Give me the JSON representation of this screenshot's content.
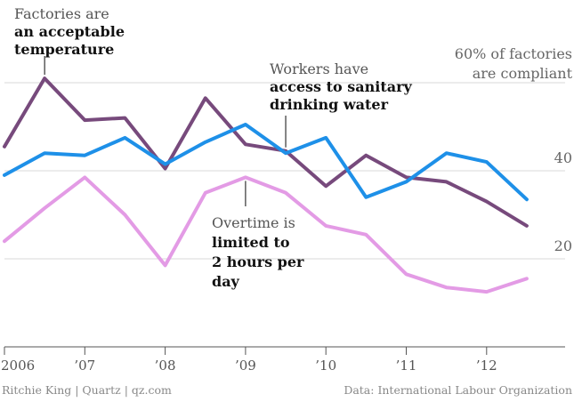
{
  "chart_data": {
    "type": "line",
    "title": "",
    "xlabel": "",
    "ylabel": "",
    "x": [
      2006.0,
      2006.5,
      2007.0,
      2007.5,
      2008.0,
      2008.5,
      2009.0,
      2009.5,
      2010.0,
      2010.5,
      2011.0,
      2011.5,
      2012.0,
      2012.5
    ],
    "xlim": [
      2006,
      2012.9
    ],
    "ylim": [
      0,
      60
    ],
    "yticks": [
      20,
      40
    ],
    "ytick_labels": [
      "20",
      "40"
    ],
    "xticks": [
      2006,
      2007,
      2008,
      2009,
      2010,
      2011,
      2012
    ],
    "xtick_labels": [
      "2006",
      "’07",
      "’08",
      "’09",
      "’10",
      "’11",
      "’12"
    ],
    "top_label_lines": [
      "60% of factories",
      "are compliant"
    ],
    "series": [
      {
        "name": "Factories are an acceptable temperature",
        "color": "#774a7c",
        "values": [
          45.5,
          61.0,
          51.5,
          52.0,
          40.5,
          56.5,
          46.0,
          44.5,
          36.5,
          43.5,
          38.5,
          37.5,
          33.0,
          27.5
        ]
      },
      {
        "name": "Workers have access to sanitary drinking water",
        "color": "#1e90e8",
        "values": [
          39.0,
          44.0,
          43.5,
          47.5,
          41.5,
          46.5,
          50.5,
          44.0,
          47.5,
          34.0,
          37.5,
          44.0,
          42.0,
          33.5
        ]
      },
      {
        "name": "Overtime is limited to 2 hours per day",
        "color": "#e39be5",
        "values": [
          24.0,
          31.5,
          38.5,
          30.0,
          18.5,
          35.0,
          38.5,
          35.0,
          27.5,
          25.5,
          16.5,
          13.5,
          12.5,
          15.5
        ]
      }
    ],
    "annotations": [
      {
        "lines": [
          {
            "text": "Factories are",
            "bold": false
          },
          {
            "text": "an acceptable",
            "bold": true
          },
          {
            "text": "temperature",
            "bold": true
          }
        ],
        "pointer": [
          2006.5,
          61.0
        ]
      },
      {
        "lines": [
          {
            "text": "Workers have",
            "bold": false
          },
          {
            "text": "access to sanitary",
            "bold": true
          },
          {
            "text": "drinking water",
            "bold": true
          }
        ],
        "pointer": [
          2009.5,
          44.5
        ]
      },
      {
        "lines": [
          {
            "text": "Overtime is",
            "bold": false
          },
          {
            "text": "limited to",
            "bold": true
          },
          {
            "text": "2 hours per",
            "bold": true
          },
          {
            "text": "day",
            "bold": true
          }
        ],
        "pointer": [
          2009.0,
          38.5
        ]
      }
    ]
  },
  "footer": {
    "credit": "Ritchie King | Quartz | qz.com",
    "source": "Data: International Labour Organization"
  }
}
